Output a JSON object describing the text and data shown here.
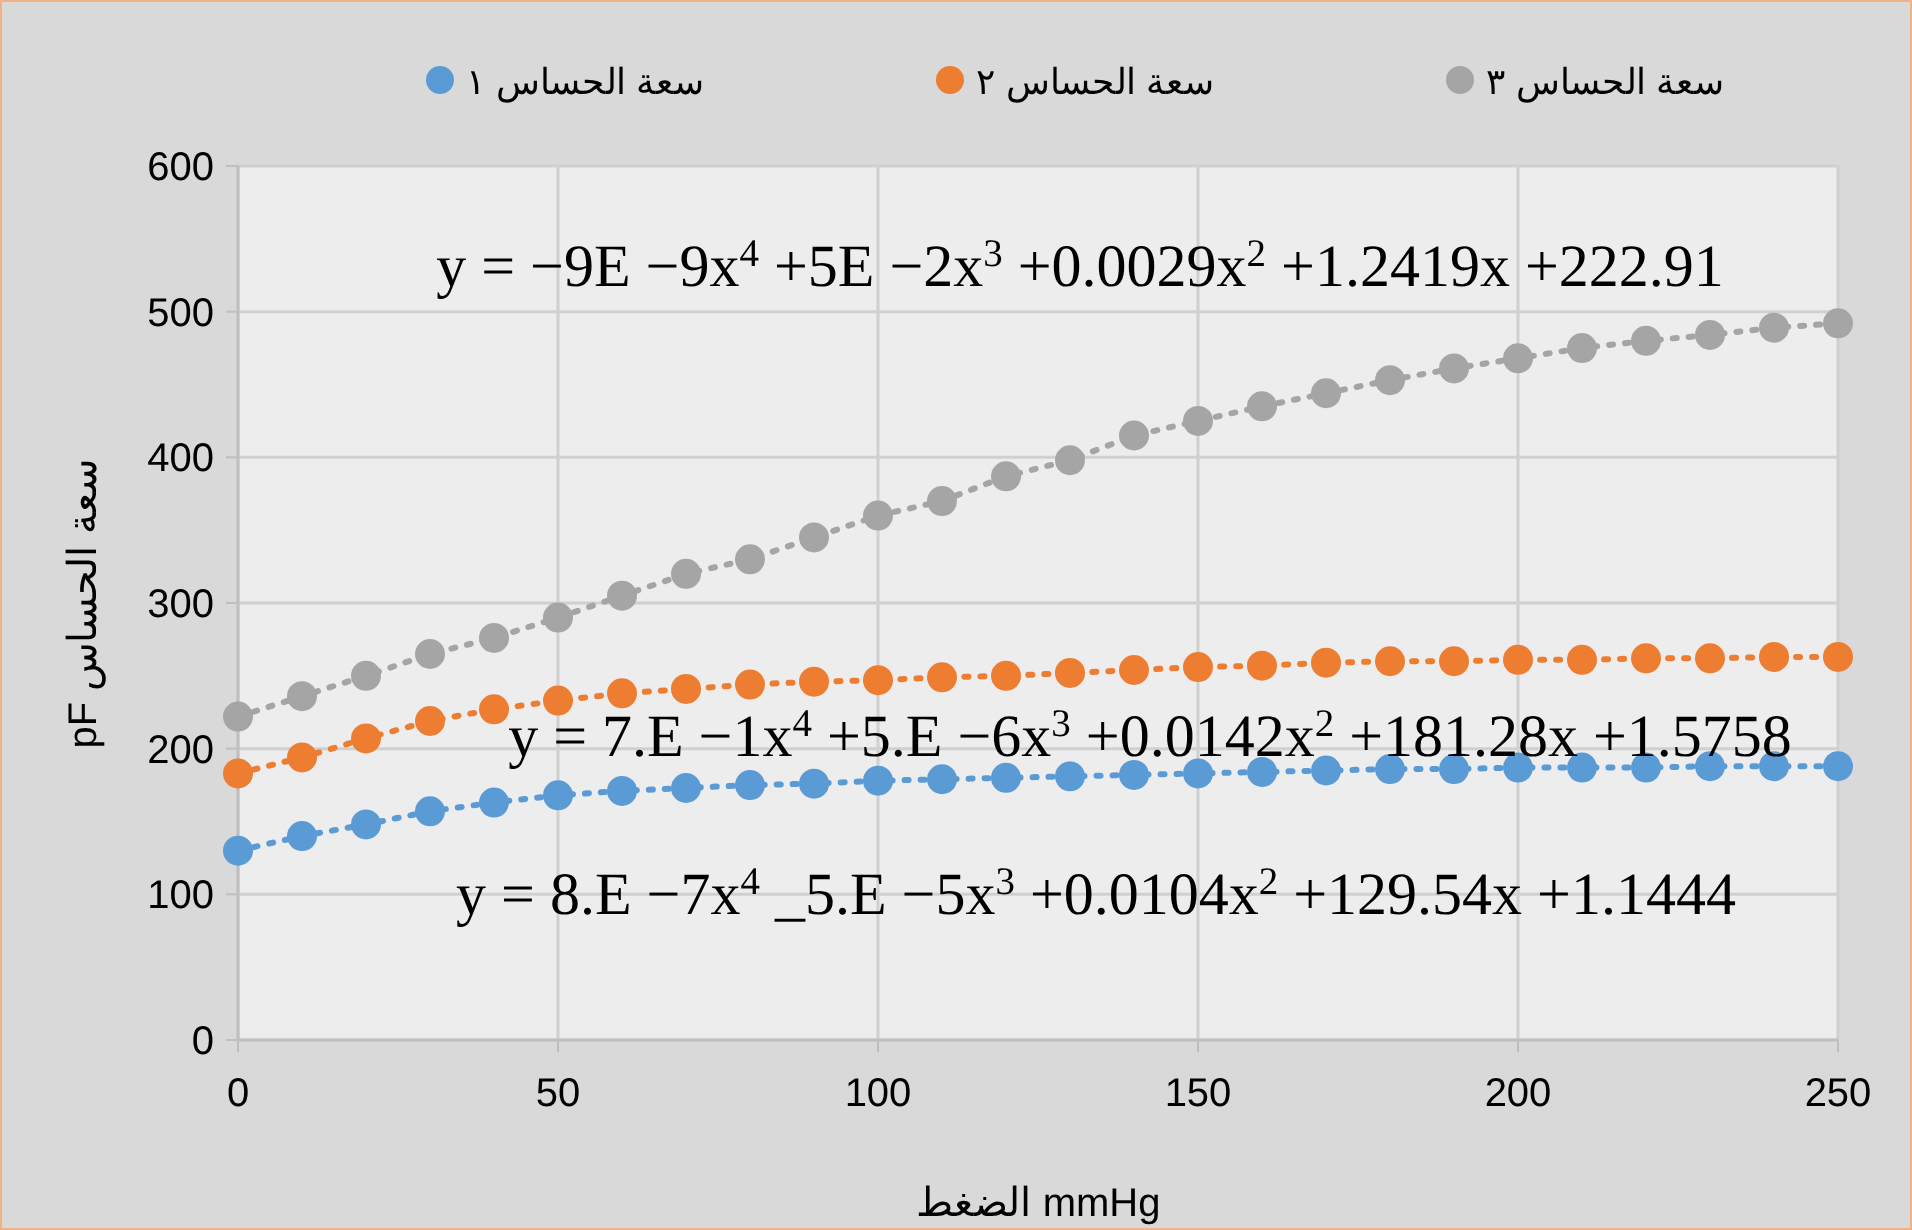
{
  "chart_data": {
    "type": "line",
    "xlabel": "الضغط mmHg",
    "ylabel": "pF سعة الحساس",
    "x": [
      0,
      10,
      20,
      30,
      40,
      50,
      60,
      70,
      80,
      90,
      100,
      110,
      120,
      130,
      140,
      150,
      160,
      170,
      180,
      190,
      200,
      210,
      220,
      230,
      240,
      250
    ],
    "series": [
      {
        "name": "سعة الحساس ١",
        "color": "#5b9bd5",
        "values": [
          130,
          140,
          148,
          157,
          163,
          168,
          171,
          173,
          175,
          176,
          178,
          179,
          180,
          181,
          182,
          183,
          184,
          185,
          186,
          186,
          187,
          187,
          187,
          188,
          188,
          188
        ]
      },
      {
        "name": "سعة الحساس ٢",
        "color": "#ed7d31",
        "values": [
          183,
          194,
          207,
          219,
          227,
          233,
          238,
          241,
          244,
          246,
          247,
          249,
          250,
          252,
          254,
          256,
          257,
          259,
          260,
          260,
          261,
          261,
          262,
          262,
          263,
          263
        ]
      },
      {
        "name": "سعة الحساس ٣",
        "color": "#a5a5a5",
        "values": [
          222,
          236,
          250,
          265,
          276,
          290,
          305,
          320,
          330,
          345,
          360,
          370,
          387,
          398,
          415,
          425,
          435,
          444,
          453,
          461,
          468,
          475,
          480,
          484,
          489,
          492
        ]
      }
    ],
    "annotations": [
      "y = −9E −9x$^{4}$ +5E −2x$^{3}$ +0.0029x$^{2}$ +1.2419x +222.91",
      "y = 7.E −1x$^{4}$ +5.E −6x$^{3}$ +0.0142x$^{2}$ +181.28x +1.5758",
      "y = 8.E −7x$^{4}$ _5.E −5x$^{3}$ +0.0104x$^{2}$ +129.54x +1.1444"
    ],
    "xlim": [
      0,
      250
    ],
    "xticks": [
      0,
      50,
      100,
      150,
      200,
      250
    ],
    "ylim": [
      0,
      600
    ],
    "yticks": [
      0,
      100,
      200,
      300,
      400,
      500,
      600
    ],
    "grid": true,
    "legend": "top",
    "marker": "circle",
    "line_style": "dotted"
  }
}
